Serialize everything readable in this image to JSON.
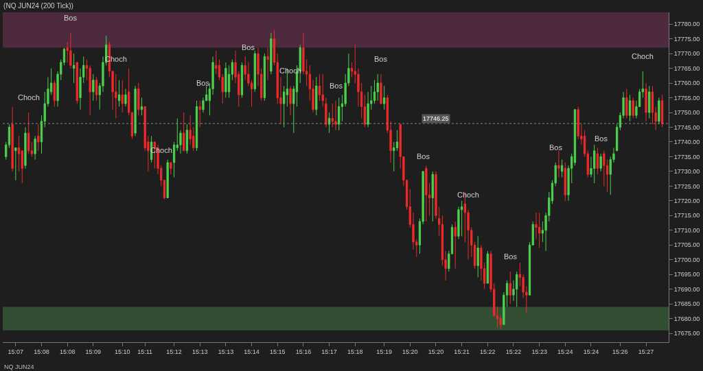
{
  "chart_data": {
    "type": "candlestick",
    "title": "(NQ JUN24 (200 Tick))",
    "categories": [
      null,
      null,
      null,
      "15:07",
      null,
      null,
      null,
      null,
      null,
      null,
      null,
      "15:08",
      null,
      null,
      null,
      null,
      null,
      null,
      null,
      "15:08",
      null,
      null,
      null,
      null,
      null,
      null,
      null,
      "15:09",
      null,
      null,
      null,
      null,
      null,
      null,
      null,
      null,
      "15:10",
      null,
      null,
      null,
      null,
      null,
      null,
      "15:11",
      null,
      null,
      null,
      null,
      null,
      null,
      null,
      null,
      "15:12",
      null,
      null,
      null,
      null,
      null,
      null,
      null,
      "15:13",
      null,
      null,
      null,
      null,
      null,
      null,
      null,
      "15:13",
      null,
      null,
      null,
      null,
      null,
      null,
      null,
      "15:14",
      null,
      null,
      null,
      null,
      null,
      null,
      null,
      "15:15",
      null,
      null,
      null,
      null,
      null,
      null,
      null,
      "15:16",
      null,
      null,
      null,
      null,
      null,
      null,
      null,
      "15:17",
      null,
      null,
      null,
      null,
      null,
      null,
      null,
      "15:18",
      null,
      null,
      null,
      null,
      null,
      null,
      null,
      null,
      "15:19",
      null,
      null,
      null,
      null,
      null,
      null,
      null,
      "15:20",
      null,
      null,
      null,
      null,
      null,
      null,
      null,
      "15:20",
      null,
      null,
      null,
      null,
      null,
      null,
      null,
      "15:21",
      null,
      null,
      null,
      null,
      null,
      null,
      null,
      "15:22",
      null,
      null,
      null,
      null,
      null,
      null,
      null,
      "15:22",
      null,
      null,
      null,
      null,
      null,
      null,
      null,
      "15:23",
      null,
      null,
      null,
      null,
      null,
      null,
      null,
      "15:24",
      null,
      null,
      null,
      null,
      null,
      null,
      null,
      "15:24",
      null,
      null,
      null,
      null,
      null,
      null,
      null,
      null,
      "15:26",
      null,
      null,
      null,
      null,
      null,
      null,
      null,
      "15:27",
      null,
      null,
      null,
      null,
      null
    ],
    "ohlc": [
      [
        17735,
        17740,
        17734,
        17739
      ],
      [
        17739,
        17746,
        17738,
        17745
      ],
      [
        17746,
        17752,
        17730,
        17731
      ],
      [
        17737,
        17738,
        17727,
        17738
      ],
      [
        17738,
        17742,
        17730,
        17736
      ],
      [
        17737,
        17737,
        17726,
        17731
      ],
      [
        17732,
        17745,
        17731,
        17743
      ],
      [
        17743,
        17750,
        17736,
        17737
      ],
      [
        17737,
        17740,
        17735,
        17736
      ],
      [
        17736,
        17742,
        17734,
        17741
      ],
      [
        17742,
        17746,
        17737,
        17740
      ],
      [
        17740,
        17749,
        17736,
        17747
      ],
      [
        17747,
        17757,
        17745,
        17753
      ],
      [
        17753,
        17762,
        17752,
        17758
      ],
      [
        17757,
        17765,
        17756,
        17760
      ],
      [
        17760,
        17761,
        17752,
        17754
      ],
      [
        17754,
        17764,
        17752,
        17763
      ],
      [
        17763,
        17768,
        17761,
        17767
      ],
      [
        17767,
        17772,
        17766,
        17771.5
      ],
      [
        17772,
        17774,
        17767,
        17771
      ],
      [
        17771,
        17777,
        17765,
        17766
      ],
      [
        17765,
        17770,
        17760,
        17766
      ],
      [
        17767,
        17767,
        17753,
        17754
      ],
      [
        17755,
        17765,
        17751,
        17762
      ],
      [
        17762,
        17769,
        17760,
        17766
      ],
      [
        17766,
        17768,
        17761,
        17765
      ],
      [
        17765,
        17766,
        17749,
        17757
      ],
      [
        17757,
        17763,
        17754,
        17761
      ],
      [
        17761,
        17762,
        17754,
        17756
      ],
      [
        17756,
        17760,
        17751,
        17759
      ],
      [
        17759,
        17769,
        17757,
        17767
      ],
      [
        17767,
        17776,
        17766,
        17773
      ],
      [
        17773,
        17774,
        17762,
        17764
      ],
      [
        17764,
        17764,
        17751,
        17757
      ],
      [
        17757,
        17763,
        17748,
        17755
      ],
      [
        17754,
        17761,
        17752,
        17756
      ],
      [
        17756,
        17761,
        17750,
        17753
      ],
      [
        17753,
        17758,
        17752,
        17756
      ],
      [
        17757,
        17765,
        17749,
        17750
      ],
      [
        17750,
        17750,
        17741,
        17742
      ],
      [
        17743,
        17759,
        17742,
        17758
      ],
      [
        17758,
        17760,
        17749,
        17751
      ],
      [
        17751,
        17755,
        17749,
        17752
      ],
      [
        17752,
        17752,
        17737,
        17738
      ],
      [
        17740,
        17742,
        17730,
        17737
      ],
      [
        17734,
        17742,
        17733,
        17740
      ],
      [
        17740,
        17740,
        17731,
        17738
      ],
      [
        17738,
        17739,
        17729,
        17731
      ],
      [
        17731,
        17732,
        17725,
        17727
      ],
      [
        17727,
        17727,
        17720.5,
        17721
      ],
      [
        17721,
        17734,
        17721,
        17733
      ],
      [
        17733,
        17733,
        17729,
        17731
      ],
      [
        17733,
        17740,
        17728,
        17739
      ],
      [
        17738,
        17748,
        17737,
        17739
      ],
      [
        17739,
        17744,
        17736,
        17743
      ],
      [
        17743,
        17750,
        17737,
        17737
      ],
      [
        17737,
        17746,
        17736,
        17744
      ],
      [
        17744,
        17749,
        17739,
        17741
      ],
      [
        17742,
        17745,
        17737,
        17738
      ],
      [
        17738,
        17754,
        17737,
        17752
      ],
      [
        17752,
        17754,
        17745,
        17751
      ],
      [
        17751,
        17755,
        17750,
        17754
      ],
      [
        17754,
        17759,
        17754,
        17756
      ],
      [
        17754,
        17760,
        17749,
        17758
      ],
      [
        17758,
        17769,
        17756,
        17767
      ],
      [
        17766,
        17771,
        17763,
        17765
      ],
      [
        17766,
        17768,
        17761,
        17762
      ],
      [
        17762,
        17763,
        17753,
        17757
      ],
      [
        17757,
        17767,
        17755,
        17765
      ],
      [
        17757,
        17766,
        17755,
        17763
      ],
      [
        17763,
        17768,
        17761,
        17767
      ],
      [
        17767,
        17771,
        17760,
        17762
      ],
      [
        17763,
        17764,
        17752,
        17756
      ],
      [
        17756,
        17767,
        17755,
        17766
      ],
      [
        17766,
        17769,
        17761,
        17763
      ],
      [
        17763,
        17767,
        17759,
        17760
      ],
      [
        17760,
        17761,
        17752,
        17758
      ],
      [
        17758,
        17771,
        17757,
        17770
      ],
      [
        17770,
        17772,
        17759,
        17763
      ],
      [
        17763,
        17765,
        17754,
        17755
      ],
      [
        17755,
        17770,
        17754,
        17769
      ],
      [
        17769,
        17772,
        17761,
        17768
      ],
      [
        17764,
        17777,
        17763,
        17775
      ],
      [
        17775,
        17778,
        17766,
        17767
      ],
      [
        17767,
        17770,
        17753,
        17755
      ],
      [
        17755,
        17762,
        17746,
        17753
      ],
      [
        17753,
        17759,
        17745,
        17757
      ],
      [
        17756,
        17765,
        17752,
        17758
      ],
      [
        17758,
        17759,
        17749,
        17753
      ],
      [
        17753,
        17759,
        17743,
        17758
      ],
      [
        17757,
        17766,
        17752,
        17764
      ],
      [
        17764,
        17773,
        17760,
        17772
      ],
      [
        17772,
        17777,
        17763,
        17764
      ],
      [
        17764,
        17768,
        17759,
        17763
      ],
      [
        17763,
        17766,
        17754,
        17758
      ],
      [
        17758,
        17761,
        17750,
        17751
      ],
      [
        17751,
        17762,
        17749,
        17759
      ],
      [
        17759,
        17763,
        17754,
        17756
      ],
      [
        17756,
        17763,
        17752,
        17754
      ],
      [
        17753,
        17755,
        17745,
        17746
      ],
      [
        17746,
        17750,
        17743,
        17748
      ],
      [
        17748,
        17753,
        17745,
        17747
      ],
      [
        17747,
        17754,
        17744,
        17746
      ],
      [
        17746,
        17755,
        17744,
        17752
      ],
      [
        17752,
        17756,
        17747,
        17753
      ],
      [
        17753,
        17763,
        17752,
        17760
      ],
      [
        17760,
        17770,
        17759,
        17765
      ],
      [
        17765,
        17767,
        17762,
        17764
      ],
      [
        17764,
        17773,
        17760,
        17763
      ],
      [
        17763,
        17765,
        17752,
        17757
      ],
      [
        17757,
        17760,
        17748,
        17752
      ],
      [
        17752,
        17756,
        17745,
        17746
      ],
      [
        17746,
        17757,
        17745,
        17753
      ],
      [
        17753,
        17759,
        17751,
        17754
      ],
      [
        17754,
        17761,
        17753,
        17757
      ],
      [
        17757,
        17763,
        17754,
        17760
      ],
      [
        17760,
        17763,
        17753,
        17753
      ],
      [
        17753,
        17759,
        17751,
        17755
      ],
      [
        17755,
        17756,
        17743,
        17744
      ],
      [
        17744,
        17747,
        17733,
        17737
      ],
      [
        17737,
        17740,
        17730,
        17738
      ],
      [
        17738,
        17744,
        17737,
        17740
      ],
      [
        17746,
        17746,
        17731,
        17735
      ],
      [
        17735,
        17735,
        17725,
        17727
      ],
      [
        17727,
        17727,
        17717,
        17718
      ],
      [
        17718,
        17724,
        17711,
        17712
      ],
      [
        17712,
        17716,
        17703.5,
        17706
      ],
      [
        17706,
        17707,
        17701,
        17705
      ],
      [
        17705,
        17714,
        17702,
        17713
      ],
      [
        17713,
        17730,
        17712,
        17730
      ],
      [
        17731,
        17732,
        17713,
        17722
      ],
      [
        17722,
        17726,
        17715,
        17721
      ],
      [
        17721,
        17730,
        17713,
        17729
      ],
      [
        17729,
        17730,
        17714,
        17715
      ],
      [
        17714,
        17718,
        17708,
        17712
      ],
      [
        17712,
        17715,
        17698,
        17700
      ],
      [
        17700,
        17703,
        17693,
        17697
      ],
      [
        17697,
        17703,
        17696,
        17702
      ],
      [
        17702,
        17712,
        17702,
        17711
      ],
      [
        17711,
        17713,
        17697,
        17708
      ],
      [
        17708,
        17718,
        17707,
        17717
      ],
      [
        17717,
        17720,
        17708,
        17718
      ],
      [
        17719,
        17723,
        17706,
        17716
      ],
      [
        17716,
        17717,
        17700,
        17710
      ],
      [
        17710,
        17711,
        17701,
        17705
      ],
      [
        17705,
        17706,
        17697,
        17698
      ],
      [
        17698,
        17708,
        17694,
        17704
      ],
      [
        17704,
        17705,
        17693,
        17697
      ],
      [
        17697,
        17699,
        17690,
        17692
      ],
      [
        17692,
        17703,
        17692,
        17702
      ],
      [
        17702,
        17703,
        17689,
        17690
      ],
      [
        17690,
        17692,
        17681,
        17681
      ],
      [
        17681,
        17684,
        17677,
        17680
      ],
      [
        17680,
        17681,
        17676.5,
        17678
      ],
      [
        17678,
        17689,
        17678,
        17688
      ],
      [
        17688,
        17693,
        17684,
        17692
      ],
      [
        17692,
        17696,
        17685,
        17688
      ],
      [
        17688,
        17693,
        17686,
        17690
      ],
      [
        17690,
        17696,
        17684,
        17695
      ],
      [
        17695,
        17699,
        17691,
        17694
      ],
      [
        17694,
        17695,
        17687,
        17689
      ],
      [
        17689,
        17691,
        17682,
        17688
      ],
      [
        17688,
        17706,
        17688,
        17705
      ],
      [
        17705,
        17713,
        17705,
        17712
      ],
      [
        17712,
        17716,
        17707,
        17711
      ],
      [
        17711,
        17716,
        17704,
        17709
      ],
      [
        17709,
        17713,
        17706,
        17710
      ],
      [
        17710,
        17716,
        17703,
        17715
      ],
      [
        17715,
        17723,
        17713,
        17721
      ],
      [
        17720,
        17727,
        17719,
        17726
      ],
      [
        17726,
        17733,
        17725,
        17732
      ],
      [
        17732,
        17737,
        17728,
        17731
      ],
      [
        17730,
        17734,
        17728,
        17732
      ],
      [
        17731,
        17733,
        17720,
        17722
      ],
      [
        17722,
        17732,
        17720,
        17731
      ],
      [
        17731,
        17736,
        17726,
        17735
      ],
      [
        17733,
        17751,
        17732,
        17751
      ],
      [
        17751,
        17752,
        17741,
        17742
      ],
      [
        17742,
        17746,
        17739,
        17741
      ],
      [
        17742,
        17744,
        17735,
        17736
      ],
      [
        17736,
        17737,
        17728,
        17729
      ],
      [
        17729,
        17735,
        17728,
        17731
      ],
      [
        17731,
        17739,
        17726,
        17737
      ],
      [
        17736,
        17738,
        17729,
        17731
      ],
      [
        17731,
        17736,
        17730,
        17735
      ],
      [
        17736,
        17737,
        17725,
        17732
      ],
      [
        17732,
        17734,
        17723,
        17729
      ],
      [
        17729,
        17735,
        17722,
        17734
      ],
      [
        17734,
        17738,
        17733,
        17736
      ],
      [
        17737,
        17746,
        17737,
        17745
      ],
      [
        17745,
        17750,
        17744,
        17749
      ],
      [
        17749,
        17757,
        17748,
        17755
      ],
      [
        17755,
        17758,
        17748,
        17749
      ],
      [
        17749,
        17756,
        17747,
        17754
      ],
      [
        17754,
        17755,
        17748,
        17749
      ],
      [
        17749,
        17754,
        17748,
        17752
      ],
      [
        17752,
        17758,
        17752,
        17757
      ],
      [
        17757,
        17764,
        17755,
        17758
      ],
      [
        17758,
        17760,
        17747,
        17750
      ],
      [
        17750,
        17759,
        17748,
        17757
      ],
      [
        17757,
        17759,
        17746,
        17750
      ],
      [
        17750,
        17752,
        17744,
        17747
      ],
      [
        17747,
        17755,
        17746,
        17754
      ],
      [
        17754,
        17756,
        17745,
        17746.25
      ]
    ],
    "ref_lines": [
      {
        "axis": "y",
        "value": 17746.25,
        "label": "17746.25"
      }
    ],
    "ylim": [
      17672,
      17784
    ],
    "yticks": [
      {
        "value": 17675,
        "label": "17675.00"
      },
      {
        "value": 17680,
        "label": "17680.00"
      },
      {
        "value": 17685,
        "label": "17685.00"
      },
      {
        "value": 17690,
        "label": "17690.00"
      },
      {
        "value": 17695,
        "label": "17695.00"
      },
      {
        "value": 17700,
        "label": "17700.00"
      },
      {
        "value": 17705,
        "label": "17705.00"
      },
      {
        "value": 17710,
        "label": "17710.00"
      },
      {
        "value": 17715,
        "label": "17715.00"
      },
      {
        "value": 17720,
        "label": "17720.00"
      },
      {
        "value": 17725,
        "label": "17725.00"
      },
      {
        "value": 17730,
        "label": "17730.00"
      },
      {
        "value": 17735,
        "label": "17735.00"
      },
      {
        "value": 17740,
        "label": "17740.00"
      },
      {
        "value": 17745,
        "label": "17745.00"
      },
      {
        "value": 17750,
        "label": "17750.00"
      },
      {
        "value": 17755,
        "label": "17755.00"
      },
      {
        "value": 17760,
        "label": "17760.00"
      },
      {
        "value": 17765,
        "label": "17765.00"
      },
      {
        "value": 17770,
        "label": "17770.00"
      },
      {
        "value": 17775,
        "label": "17775.00"
      },
      {
        "value": 17780,
        "label": "17780.00"
      }
    ],
    "bands": [
      {
        "axis": "y",
        "from": 17772,
        "to": 17784,
        "label": null,
        "color": "#8a3a68"
      },
      {
        "axis": "y",
        "from": 17676,
        "to": 17684,
        "label": null,
        "color": "#4e8a4e"
      }
    ],
    "annotations": [
      "Choch",
      "Bos",
      "Choch",
      "Choch",
      "Bos",
      "Bos",
      "Choch",
      "Bos",
      "Bos",
      "Bos",
      "Choch",
      "Bos",
      "Bos",
      "Bos",
      "Choch",
      "NQ JUN24"
    ]
  }
}
